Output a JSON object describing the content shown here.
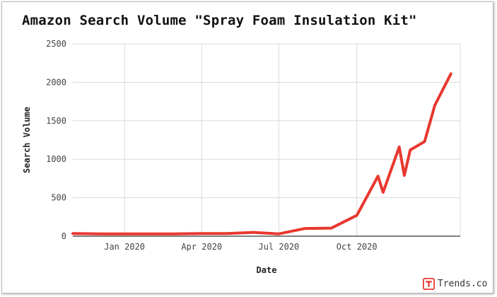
{
  "chart_data": {
    "type": "line",
    "title": "Amazon Search Volume \"Spray Foam Insulation Kit\"",
    "xlabel": "Date",
    "ylabel": "Search Volume",
    "ylim": [
      0,
      2500
    ],
    "y_ticks": [
      0,
      500,
      1000,
      1500,
      2000,
      2500
    ],
    "x_ticks": [
      {
        "date": "2020-01-01",
        "label": "Jan 2020"
      },
      {
        "date": "2020-04-01",
        "label": "Apr 2020"
      },
      {
        "date": "2020-07-01",
        "label": "Jul 2020"
      },
      {
        "date": "2020-10-01",
        "label": "Oct 2020"
      }
    ],
    "xlim": [
      "2019-11-01",
      "2021-01-31"
    ],
    "grid": true,
    "line_color": "#e8382f",
    "series": [
      {
        "x": [
          "2019-11-01",
          "2019-12-01",
          "2020-01-01",
          "2020-02-01",
          "2020-03-01",
          "2020-04-01",
          "2020-05-01",
          "2020-06-01",
          "2020-07-01",
          "2020-08-01",
          "2020-09-01",
          "2020-10-01",
          "2020-10-26",
          "2020-11-01",
          "2020-11-20",
          "2020-11-26",
          "2020-12-03",
          "2020-12-20",
          "2021-01-01",
          "2021-01-20"
        ],
        "values": [
          35,
          30,
          30,
          30,
          30,
          35,
          35,
          50,
          30,
          100,
          105,
          270,
          780,
          570,
          1160,
          790,
          1120,
          1230,
          1700,
          2110
        ]
      }
    ]
  },
  "brand": {
    "name": "Trends.co"
  }
}
